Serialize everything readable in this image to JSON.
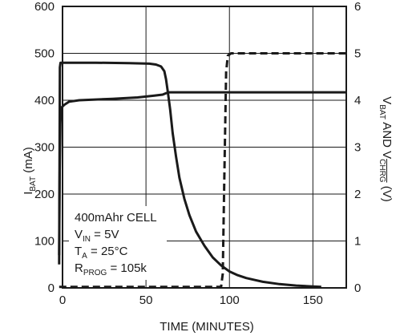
{
  "chart_data": {
    "type": "line",
    "x_label": "TIME (MINUTES)",
    "y_left_label": {
      "main": "I",
      "sub": "BAT",
      "rest": " (mA)"
    },
    "y_right_label": {
      "p1": "V",
      "s1": "BAT",
      "p2": " AND V",
      "s2": "CHRG",
      "p3": " (V)"
    },
    "x_range": [
      0,
      170
    ],
    "y_left_range": [
      0,
      600
    ],
    "y_right_range": [
      0,
      6
    ],
    "x_ticks": [
      0,
      50,
      100,
      150
    ],
    "y_left_ticks": [
      0,
      100,
      200,
      300,
      400,
      500,
      600
    ],
    "y_right_ticks": [
      0,
      1,
      2,
      3,
      4,
      5,
      6
    ],
    "grid": true,
    "series": [
      {
        "axis": "left",
        "style": "solid",
        "points": [
          [
            -2,
            50
          ],
          [
            -1.6,
            470
          ],
          [
            -1.2,
            480
          ],
          [
            0,
            480
          ],
          [
            20,
            480
          ],
          [
            40,
            479
          ],
          [
            52,
            478
          ],
          [
            56,
            476
          ],
          [
            59,
            472
          ],
          [
            61,
            462
          ],
          [
            62,
            445
          ],
          [
            63,
            420
          ],
          [
            64.5,
            380
          ],
          [
            66,
            330
          ],
          [
            68,
            280
          ],
          [
            70,
            235
          ],
          [
            73,
            190
          ],
          [
            76,
            155
          ],
          [
            80,
            120
          ],
          [
            85,
            90
          ],
          [
            90,
            65
          ],
          [
            95,
            48
          ],
          [
            100,
            35
          ],
          [
            105,
            27
          ],
          [
            110,
            21
          ],
          [
            115,
            17
          ],
          [
            120,
            13
          ],
          [
            130,
            8
          ],
          [
            140,
            5
          ],
          [
            150,
            3
          ],
          [
            155,
            2
          ]
        ]
      },
      {
        "axis": "right",
        "style": "solid",
        "points": [
          [
            -2,
            0.7
          ],
          [
            -1.7,
            2.5
          ],
          [
            -1.3,
            3.5
          ],
          [
            -1,
            3.75
          ],
          [
            -0.5,
            3.85
          ],
          [
            1,
            3.9
          ],
          [
            4,
            3.97
          ],
          [
            10,
            4.0
          ],
          [
            30,
            4.03
          ],
          [
            45,
            4.06
          ],
          [
            55,
            4.1
          ],
          [
            60,
            4.12
          ],
          [
            62,
            4.15
          ],
          [
            64,
            4.17
          ],
          [
            170,
            4.17
          ]
        ]
      },
      {
        "axis": "right",
        "style": "dashed",
        "points": [
          [
            -2,
            0.02
          ],
          [
            95,
            0.02
          ],
          [
            96,
            0.3
          ],
          [
            97,
            2.5
          ],
          [
            98,
            4.6
          ],
          [
            99,
            4.95
          ],
          [
            101,
            5.0
          ],
          [
            170,
            5.0
          ]
        ]
      }
    ]
  },
  "annotation": {
    "line1": "400mAhr CELL",
    "vin_main": "V",
    "vin_sub": "IN",
    "vin_rest": " = 5V",
    "ta_main": "T",
    "ta_sub": "A",
    "ta_rest": " = 25°C",
    "rprog_main": "R",
    "rprog_sub": "PROG",
    "rprog_rest": " = 105k"
  }
}
